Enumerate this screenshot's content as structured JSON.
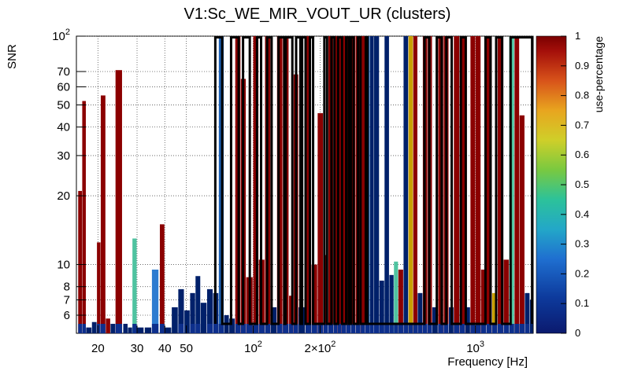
{
  "chart_data": {
    "type": "heatmap",
    "title": "V1:Sc_WE_MIR_VOUT_UR (clusters)",
    "xlabel": "Frequency [Hz]",
    "ylabel": "SNR",
    "zlabel": "use-percentage",
    "x_scale": "log",
    "y_scale": "log",
    "xlim": [
      16,
      1820
    ],
    "ylim": [
      5,
      100
    ],
    "zlim": [
      0,
      1
    ],
    "grid": true,
    "x_ticks": [
      {
        "value": 20,
        "label": "20"
      },
      {
        "value": 30,
        "label": "30"
      },
      {
        "value": 40,
        "label": "40"
      },
      {
        "value": 50,
        "label": "50"
      },
      {
        "value": 100,
        "label": "10",
        "exponent": "2"
      },
      {
        "value": 200,
        "label": "2×10",
        "exponent": "2"
      },
      {
        "value": 1000,
        "label": "10",
        "exponent": "3"
      }
    ],
    "y_ticks": [
      {
        "value": 6,
        "label": "6"
      },
      {
        "value": 7,
        "label": "7"
      },
      {
        "value": 8,
        "label": "8"
      },
      {
        "value": 10,
        "label": "10"
      },
      {
        "value": 20,
        "label": "20"
      },
      {
        "value": 30,
        "label": "30"
      },
      {
        "value": 40,
        "label": "40"
      },
      {
        "value": 50,
        "label": "50"
      },
      {
        "value": 60,
        "label": "60"
      },
      {
        "value": 70,
        "label": "70"
      },
      {
        "value": 100,
        "label": "10",
        "exponent": "2"
      }
    ],
    "z_ticks": [
      {
        "value": 0,
        "label": "0"
      },
      {
        "value": 0.1,
        "label": "0.1"
      },
      {
        "value": 0.2,
        "label": "0.2"
      },
      {
        "value": 0.3,
        "label": "0.3"
      },
      {
        "value": 0.4,
        "label": "0.4"
      },
      {
        "value": 0.5,
        "label": "0.5"
      },
      {
        "value": 0.6,
        "label": "0.6"
      },
      {
        "value": 0.7,
        "label": "0.7"
      },
      {
        "value": 0.8,
        "label": "0.8"
      },
      {
        "value": 0.9,
        "label": "0.9"
      },
      {
        "value": 1,
        "label": "1"
      }
    ],
    "columns": [
      {
        "f": 16.3,
        "snr_max": 21,
        "c": "#8b0000"
      },
      {
        "f": 17.0,
        "snr_max": 52,
        "c": "#8b0000"
      },
      {
        "f": 17.7,
        "snr_max": 5.3,
        "c": "#00206a"
      },
      {
        "f": 18.8,
        "snr_max": 5.6,
        "c": "#00206a"
      },
      {
        "f": 19.8,
        "snr_max": 12.5,
        "c": "#8b0000"
      },
      {
        "f": 20.6,
        "snr_max": 55,
        "c": "#8b0000"
      },
      {
        "f": 21.7,
        "snr_max": 5.8,
        "c": "#8b0000"
      },
      {
        "f": 22.8,
        "snr_max": 5.5,
        "c": "#00206a"
      },
      {
        "f": 24.0,
        "snr_max": 71,
        "c": "#8b0000"
      },
      {
        "f": 26.0,
        "snr_max": 5.5,
        "c": "#00206a"
      },
      {
        "f": 27.3,
        "snr_max": 5.3,
        "c": "#00206a"
      },
      {
        "f": 28.6,
        "snr_max": 13,
        "c": "#4fc3a0"
      },
      {
        "f": 30.0,
        "snr_max": 5.3,
        "c": "#00206a"
      },
      {
        "f": 32.5,
        "snr_max": 5.3,
        "c": "#00206a"
      },
      {
        "f": 35.0,
        "snr_max": 9.5,
        "c": "#2d7bd0"
      },
      {
        "f": 38.0,
        "snr_max": 15,
        "c": "#8b0000"
      },
      {
        "f": 40.0,
        "snr_max": 5.3,
        "c": "#00206a"
      },
      {
        "f": 43.0,
        "snr_max": 6.5,
        "c": "#00206a"
      },
      {
        "f": 46.0,
        "snr_max": 7.8,
        "c": "#00206a"
      },
      {
        "f": 49.0,
        "snr_max": 6.3,
        "c": "#00206a"
      },
      {
        "f": 52.0,
        "snr_max": 7.5,
        "c": "#00206a"
      },
      {
        "f": 55.0,
        "snr_max": 8.9,
        "c": "#00206a"
      },
      {
        "f": 58.0,
        "snr_max": 6.8,
        "c": "#00206a"
      },
      {
        "f": 62.0,
        "snr_max": 7.8,
        "c": "#00206a"
      },
      {
        "f": 66.0,
        "snr_max": 7.5,
        "c": "#00206a"
      },
      {
        "f": 70.0,
        "snr_max": 100,
        "c": "#1a5fb4"
      },
      {
        "f": 74.0,
        "snr_max": 6.0,
        "c": "#00206a"
      },
      {
        "f": 78.0,
        "snr_max": 5.8,
        "c": "#00206a"
      },
      {
        "f": 83.0,
        "snr_max": 100,
        "c": "#8b0000"
      },
      {
        "f": 88.0,
        "snr_max": 65,
        "c": "#8b0000"
      },
      {
        "f": 93.0,
        "snr_max": 8.8,
        "c": "#8b0000"
      },
      {
        "f": 100.0,
        "snr_max": 100,
        "c": "#8b0000"
      },
      {
        "f": 106.0,
        "snr_max": 10.5,
        "c": "#8b0000"
      },
      {
        "f": 113.0,
        "snr_max": 100,
        "c": "#8b0000"
      },
      {
        "f": 120.0,
        "snr_max": 6.5,
        "c": "#00206a"
      },
      {
        "f": 128.0,
        "snr_max": 100,
        "c": "#8b0000"
      },
      {
        "f": 136.0,
        "snr_max": 100,
        "c": "#8b0000"
      },
      {
        "f": 145.0,
        "snr_max": 7.3,
        "c": "#8b0000"
      },
      {
        "f": 152.0,
        "snr_max": 68,
        "c": "#8b0000"
      },
      {
        "f": 160.0,
        "snr_max": 6.5,
        "c": "#00206a"
      },
      {
        "f": 172.0,
        "snr_max": 100,
        "c": "#8b0000"
      },
      {
        "f": 183.0,
        "snr_max": 10,
        "c": "#8b0000"
      },
      {
        "f": 195.0,
        "snr_max": 46,
        "c": "#8b0000"
      },
      {
        "f": 207.0,
        "snr_max": 11,
        "c": "#8b0000"
      },
      {
        "f": 218.0,
        "snr_max": 100,
        "c": "#8b0000"
      },
      {
        "f": 230.0,
        "snr_max": 100,
        "c": "#8b0000"
      },
      {
        "f": 240.0,
        "snr_max": 100,
        "c": "#8b0000"
      },
      {
        "f": 250.0,
        "snr_max": 100,
        "c": "#8b0000"
      },
      {
        "f": 262.0,
        "snr_max": 100,
        "c": "#8b0000"
      },
      {
        "f": 275.0,
        "snr_max": 100,
        "c": "#8b0000"
      },
      {
        "f": 290.0,
        "snr_max": 100,
        "c": "#8b0000"
      },
      {
        "f": 305.0,
        "snr_max": 100,
        "c": "#8b0000"
      },
      {
        "f": 320.0,
        "snr_max": 100,
        "c": "#1a5fb4"
      },
      {
        "f": 335.0,
        "snr_max": 100,
        "c": "#00206a"
      },
      {
        "f": 350.0,
        "snr_max": 100,
        "c": "#00206a"
      },
      {
        "f": 370.0,
        "snr_max": 8.5,
        "c": "#00206a"
      },
      {
        "f": 390.0,
        "snr_max": 100,
        "c": "#00206a"
      },
      {
        "f": 410.0,
        "snr_max": 9.0,
        "c": "#00206a"
      },
      {
        "f": 430.0,
        "snr_max": 10.3,
        "c": "#4fc3a0"
      },
      {
        "f": 450.0,
        "snr_max": 9.5,
        "c": "#8b0000"
      },
      {
        "f": 475.0,
        "snr_max": 100,
        "c": "#00206a"
      },
      {
        "f": 500.0,
        "snr_max": 100,
        "c": "#c8a000"
      },
      {
        "f": 525.0,
        "snr_max": 100,
        "c": "#8b0000"
      },
      {
        "f": 550.0,
        "snr_max": 7.5,
        "c": "#00206a"
      },
      {
        "f": 580.0,
        "snr_max": 100,
        "c": "#8b0000"
      },
      {
        "f": 610.0,
        "snr_max": 100,
        "c": "#8b0000"
      },
      {
        "f": 640.0,
        "snr_max": 6.5,
        "c": "#00206a"
      },
      {
        "f": 680.0,
        "snr_max": 100,
        "c": "#8b0000"
      },
      {
        "f": 720.0,
        "snr_max": 100,
        "c": "#8b0000"
      },
      {
        "f": 760.0,
        "snr_max": 6.5,
        "c": "#00206a"
      },
      {
        "f": 800.0,
        "snr_max": 100,
        "c": "#8b0000"
      },
      {
        "f": 850.0,
        "snr_max": 100,
        "c": "#8b0000"
      },
      {
        "f": 900.0,
        "snr_max": 6.5,
        "c": "#00206a"
      },
      {
        "f": 950.0,
        "snr_max": 100,
        "c": "#8b0000"
      },
      {
        "f": 1000.0,
        "snr_max": 100,
        "c": "#8b0000"
      },
      {
        "f": 1060.0,
        "snr_max": 9.5,
        "c": "#8b0000"
      },
      {
        "f": 1120.0,
        "snr_max": 100,
        "c": "#8b0000"
      },
      {
        "f": 1190.0,
        "snr_max": 7.5,
        "c": "#c8a000"
      },
      {
        "f": 1260.0,
        "snr_max": 100,
        "c": "#8b0000"
      },
      {
        "f": 1340.0,
        "snr_max": 10.5,
        "c": "#8b0000"
      },
      {
        "f": 1420.0,
        "snr_max": 100,
        "c": "#4fc3a0"
      },
      {
        "f": 1500.0,
        "snr_max": 100,
        "c": "#8b0000"
      },
      {
        "f": 1580.0,
        "snr_max": 45,
        "c": "#8b0000"
      },
      {
        "f": 1670.0,
        "snr_max": 7.5,
        "c": "#00206a"
      },
      {
        "f": 1760.0,
        "snr_max": 7.0,
        "c": "#00206a"
      }
    ],
    "contour_bands": [
      [
        67.5,
        72.5
      ],
      [
        79.5,
        86
      ],
      [
        90,
        96.5
      ],
      [
        104,
        108.5
      ],
      [
        115.5,
        121
      ],
      [
        130,
        138
      ],
      [
        140,
        150
      ],
      [
        156,
        163
      ],
      [
        166,
        172
      ],
      [
        180,
        186
      ],
      [
        209,
        215
      ],
      [
        225,
        232
      ],
      [
        241,
        251
      ],
      [
        262,
        269
      ],
      [
        275,
        283
      ],
      [
        296,
        304
      ],
      [
        321,
        327
      ],
      [
        590,
        620
      ],
      [
        670,
        705
      ],
      [
        740,
        782
      ],
      [
        860,
        905
      ],
      [
        1110,
        1170
      ],
      [
        1240,
        1320
      ],
      [
        1440,
        1800
      ]
    ],
    "contour_floor": 5.5
  }
}
